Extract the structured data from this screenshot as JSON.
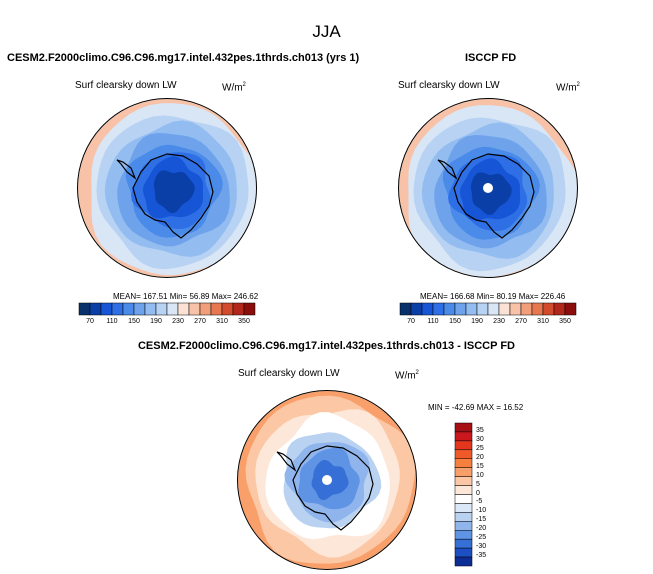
{
  "figure": {
    "season": "JJA",
    "units": "W/m",
    "units_sup": "2",
    "variable": "Surf clearsky down LW"
  },
  "panels": {
    "top_left": {
      "title": "CESM2.F2000climo.C96.C96.mg17.intel.432pes.1thrds.ch013 (yrs 1)",
      "stats": "MEAN= 167.51  Min=  56.89  Max= 246.62"
    },
    "top_right": {
      "title": "ISCCP FD",
      "stats": "MEAN= 166.68  Min=  80.19  Max= 226.46"
    },
    "bottom": {
      "title": "CESM2.F2000climo.C96.C96.mg17.intel.432pes.1thrds.ch013 - ISCCP FD",
      "stats": "MIN = -42.69 MAX =  16.52"
    }
  },
  "colorbar_field": {
    "labels": [
      "70",
      "110",
      "150",
      "190",
      "230",
      "270",
      "310",
      "350"
    ],
    "colors": [
      "#08306b",
      "#0b3fa8",
      "#1655d6",
      "#2e6fe6",
      "#4a8ae9",
      "#6ea3ec",
      "#93bcf0",
      "#b7d2f3",
      "#d8e6f6",
      "#fbe2d4",
      "#f7c2a7",
      "#f19f7b",
      "#e7774f",
      "#d24b2c",
      "#b3261a",
      "#8b0e0c"
    ]
  },
  "colorbar_diff": {
    "labels": [
      "35",
      "30",
      "25",
      "20",
      "15",
      "10",
      "5",
      "0",
      "-5",
      "-10",
      "-15",
      "-20",
      "-25",
      "-30",
      "-35"
    ],
    "colors": [
      "#a50f15",
      "#cb181d",
      "#e2361d",
      "#f05a28",
      "#f7803f",
      "#f9a06a",
      "#fbc7a5",
      "#fde7d8",
      "#ffffff",
      "#dbe8f8",
      "#b9d2f2",
      "#8fb5ec",
      "#5f93e3",
      "#3670d6",
      "#1d4fc4",
      "#0c2c96"
    ]
  },
  "chart_data": [
    {
      "type": "heatmap",
      "title": "CESM2.F2000climo.C96.C96.mg17.intel.432pes.1thrds.ch013 (yrs 1)",
      "variable": "Surf clearsky down LW",
      "units": "W/m2",
      "projection": "south polar stereographic",
      "levels": [
        70,
        90,
        110,
        130,
        150,
        170,
        190,
        210,
        230,
        250,
        270,
        290,
        310,
        330,
        350
      ],
      "mean": 167.51,
      "min": 56.89,
      "max": 246.62
    },
    {
      "type": "heatmap",
      "title": "ISCCP FD",
      "variable": "Surf clearsky down LW",
      "units": "W/m2",
      "projection": "south polar stereographic",
      "levels": [
        70,
        90,
        110,
        130,
        150,
        170,
        190,
        210,
        230,
        250,
        270,
        290,
        310,
        330,
        350
      ],
      "mean": 166.68,
      "min": 80.19,
      "max": 226.46
    },
    {
      "type": "heatmap",
      "title": "CESM2.F2000climo.C96.C96.mg17.intel.432pes.1thrds.ch013 - ISCCP FD",
      "variable": "Surf clearsky down LW",
      "units": "W/m2",
      "projection": "south polar stereographic",
      "levels": [
        -35,
        -30,
        -25,
        -20,
        -15,
        -10,
        -5,
        0,
        5,
        10,
        15,
        20,
        25,
        30,
        35
      ],
      "min": -42.69,
      "max": 16.52
    }
  ]
}
